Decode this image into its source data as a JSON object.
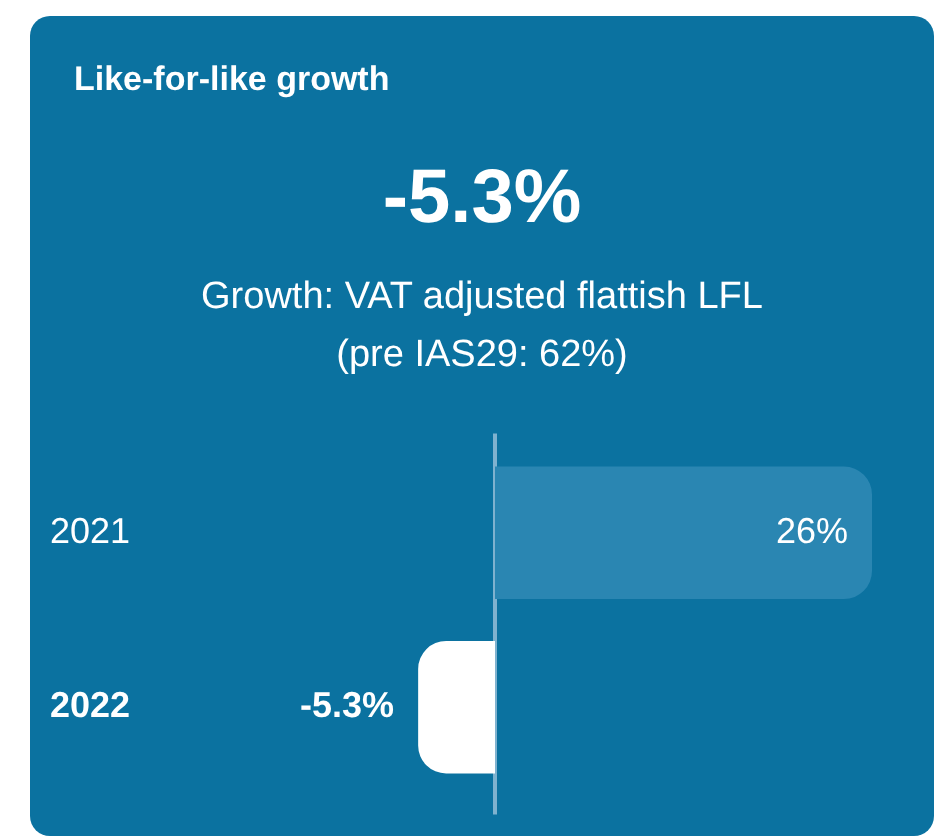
{
  "chart_data": {
    "type": "bar",
    "orientation": "horizontal",
    "title": "Like-for-like growth",
    "subtitle": "-5.3%",
    "annotations": [
      "Growth: VAT adjusted flattish LFL",
      "(pre IAS29: 62%)"
    ],
    "categories": [
      "2021",
      "2022"
    ],
    "values": [
      26,
      -5.3
    ],
    "colors": [
      "#2a86b2",
      "#ffffff"
    ],
    "value_labels": [
      "26%",
      "-5.3%"
    ],
    "ref_lines": [
      {
        "axis": "x",
        "value": 0,
        "color": "#7fb2cf"
      }
    ],
    "tick_labels": "y",
    "legend": false
  }
}
